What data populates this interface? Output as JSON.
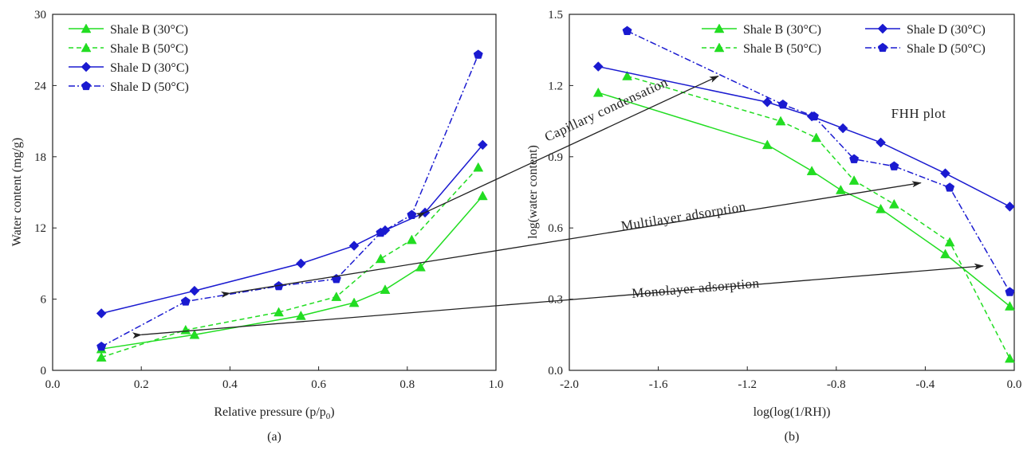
{
  "colors": {
    "shale_b": "#22dd22",
    "shale_d": "#1a1ad0",
    "axis": "#222222",
    "arrow": "#222222"
  },
  "chart_data": [
    {
      "type": "line",
      "panel_label": "(a)",
      "xlabel": "Relative pressure (p/p",
      "xlabel_sub": "0",
      "xlabel_end": ")",
      "ylabel": "Water content (mg/g)",
      "xlim": [
        0.0,
        1.0
      ],
      "ylim": [
        0,
        30
      ],
      "xticks": [
        0.0,
        0.2,
        0.4,
        0.6,
        0.8,
        1.0
      ],
      "xtick_labels": [
        "0.0",
        "0.2",
        "0.4",
        "0.6",
        "0.8",
        "1.0"
      ],
      "yticks": [
        0,
        6,
        12,
        18,
        24,
        30
      ],
      "ytick_labels": [
        "0",
        "6",
        "12",
        "18",
        "24",
        "30"
      ],
      "grid": false,
      "legend_position": "top-left",
      "series": [
        {
          "name": "Shale B (30°C)",
          "color": "#22dd22",
          "dash": "solid",
          "marker": "triangle",
          "x": [
            0.11,
            0.32,
            0.56,
            0.68,
            0.75,
            0.83,
            0.97
          ],
          "y": [
            1.8,
            3.0,
            4.6,
            5.7,
            6.8,
            8.7,
            14.7
          ]
        },
        {
          "name": "Shale B (50°C)",
          "color": "#22dd22",
          "dash": "dashed",
          "marker": "triangle",
          "x": [
            0.11,
            0.3,
            0.51,
            0.64,
            0.74,
            0.81,
            0.96
          ],
          "y": [
            1.1,
            3.4,
            4.9,
            6.2,
            9.4,
            11.0,
            17.1
          ]
        },
        {
          "name": "Shale D (30°C)",
          "color": "#1a1ad0",
          "dash": "solid",
          "marker": "diamond",
          "x": [
            0.11,
            0.32,
            0.56,
            0.68,
            0.75,
            0.84,
            0.97
          ],
          "y": [
            4.8,
            6.7,
            9.0,
            10.5,
            11.8,
            13.3,
            19.0
          ]
        },
        {
          "name": "Shale D (50°C)",
          "color": "#1a1ad0",
          "dash": "dashdot",
          "marker": "pentagon",
          "x": [
            0.11,
            0.3,
            0.51,
            0.64,
            0.74,
            0.81,
            0.96
          ],
          "y": [
            2.0,
            5.8,
            7.1,
            7.7,
            11.6,
            13.1,
            26.6
          ]
        }
      ]
    },
    {
      "type": "line",
      "panel_label": "(b)",
      "xlabel": "log(log(1/RH))",
      "ylabel": "log(water content)",
      "xlim": [
        -2.0,
        0.0
      ],
      "ylim": [
        0.0,
        1.5
      ],
      "xticks": [
        -2.0,
        -1.6,
        -1.2,
        -0.8,
        -0.4,
        0.0
      ],
      "xtick_labels": [
        "-2.0",
        "-1.6",
        "-1.2",
        "-0.8",
        "-0.4",
        "0.0"
      ],
      "yticks": [
        0.0,
        0.3,
        0.6,
        0.9,
        1.2,
        1.5
      ],
      "ytick_labels": [
        "0.0",
        "0.3",
        "0.6",
        "0.9",
        "1.2",
        "1.5"
      ],
      "grid": false,
      "legend_position": "top-right",
      "annotation": "FHH plot",
      "series": [
        {
          "name": "Shale B (30°C)",
          "color": "#22dd22",
          "dash": "solid",
          "marker": "triangle",
          "x": [
            -1.87,
            -1.11,
            -0.91,
            -0.78,
            -0.6,
            -0.31,
            -0.02
          ],
          "y": [
            1.17,
            0.95,
            0.84,
            0.76,
            0.68,
            0.49,
            0.27
          ]
        },
        {
          "name": "Shale B (50°C)",
          "color": "#22dd22",
          "dash": "dashed",
          "marker": "triangle",
          "x": [
            -1.74,
            -1.05,
            -0.89,
            -0.72,
            -0.54,
            -0.29,
            -0.02
          ],
          "y": [
            1.24,
            1.05,
            0.98,
            0.8,
            0.7,
            0.54,
            0.05
          ]
        },
        {
          "name": "Shale D (30°C)",
          "color": "#1a1ad0",
          "dash": "solid",
          "marker": "diamond",
          "x": [
            -1.87,
            -1.11,
            -0.91,
            -0.77,
            -0.6,
            -0.31,
            -0.02
          ],
          "y": [
            1.28,
            1.13,
            1.07,
            1.02,
            0.96,
            0.83,
            0.69
          ]
        },
        {
          "name": "Shale D (50°C)",
          "color": "#1a1ad0",
          "dash": "dashdot",
          "marker": "pentagon",
          "x": [
            -1.74,
            -1.04,
            -0.9,
            -0.72,
            -0.54,
            -0.29,
            -0.02
          ],
          "y": [
            1.43,
            1.12,
            1.07,
            0.89,
            0.86,
            0.77,
            0.33
          ]
        }
      ]
    }
  ],
  "annotations": [
    {
      "text": "Capillary condensation",
      "from": [
        0.84,
        13.3
      ],
      "to": [
        -1.33,
        1.24
      ]
    },
    {
      "text": "Multilayer adsorption",
      "from": [
        0.4,
        6.5
      ],
      "to": [
        -0.42,
        0.79
      ]
    },
    {
      "text": "Monolayer adsorption",
      "from": [
        0.2,
        3.0
      ],
      "to": [
        -0.14,
        0.44
      ]
    }
  ]
}
